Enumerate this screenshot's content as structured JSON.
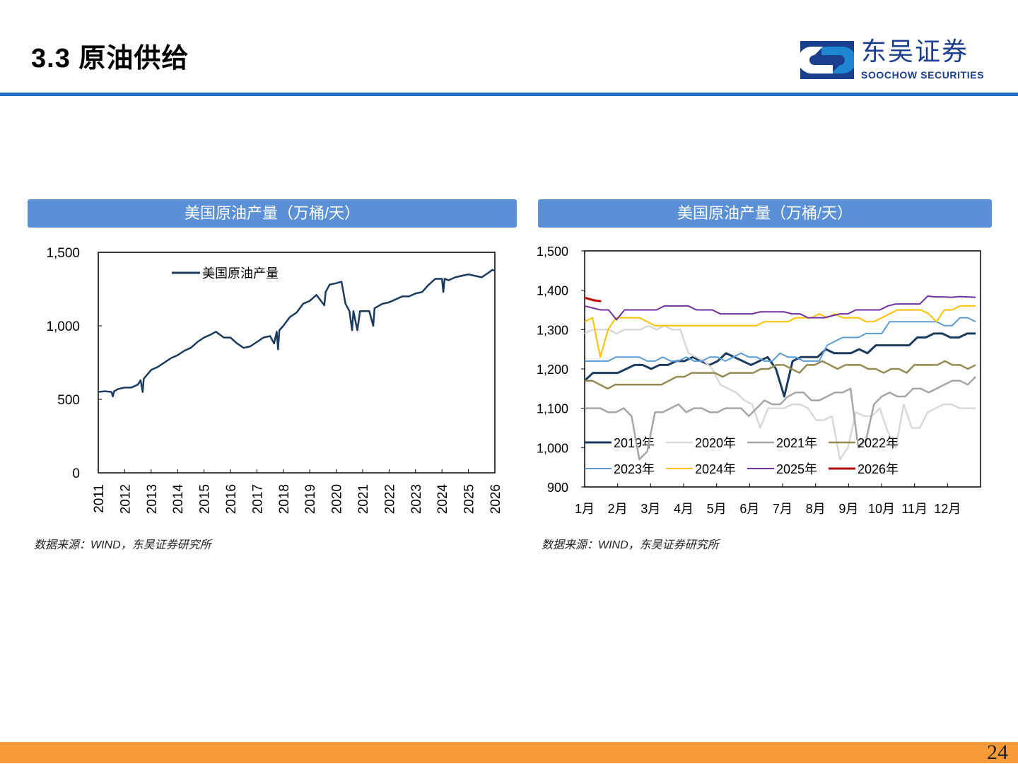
{
  "header": {
    "title": "3.3 原油供给",
    "logo_cn": "东吴证券",
    "logo_en": "SOOCHOW SECURITIES"
  },
  "panels": [
    {
      "title": "美国原油产量（万桶/天）",
      "source": "数据来源：WIND，东吴证券研究所"
    },
    {
      "title": "美国原油产量（万桶/天）",
      "source": "数据来源：WIND，东吴证券研究所"
    }
  ],
  "page_number": "24",
  "colors": {
    "accent": "#1f6fc5",
    "panel": "#5b90d6",
    "footer": "#f79a38"
  },
  "chart_data": [
    {
      "type": "line",
      "title": "美国原油产量（万桶/天）",
      "xlabel": "",
      "ylabel": "",
      "xlim": [
        2011,
        2026
      ],
      "ylim": [
        0,
        1500
      ],
      "x_ticks": [
        "2011",
        "2012",
        "2013",
        "2014",
        "2015",
        "2016",
        "2017",
        "2018",
        "2019",
        "2020",
        "2021",
        "2022",
        "2023",
        "2024",
        "2025",
        "2026"
      ],
      "y_ticks": [
        "0",
        "500",
        "1,000",
        "1,500"
      ],
      "y_tick_values": [
        0,
        500,
        1000,
        1500
      ],
      "legend": "top-left",
      "series": [
        {
          "name": "美国原油产量",
          "color": "#1b3a5e",
          "points": [
            [
              2011,
              550
            ],
            [
              2011.25,
              555
            ],
            [
              2011.5,
              550
            ],
            [
              2011.55,
              520
            ],
            [
              2011.6,
              555
            ],
            [
              2011.75,
              570
            ],
            [
              2012,
              580
            ],
            [
              2012.25,
              580
            ],
            [
              2012.5,
              600
            ],
            [
              2012.6,
              630
            ],
            [
              2012.68,
              550
            ],
            [
              2012.72,
              640
            ],
            [
              2013,
              700
            ],
            [
              2013.25,
              720
            ],
            [
              2013.5,
              750
            ],
            [
              2013.75,
              780
            ],
            [
              2014,
              800
            ],
            [
              2014.25,
              830
            ],
            [
              2014.5,
              850
            ],
            [
              2014.75,
              890
            ],
            [
              2015,
              920
            ],
            [
              2015.25,
              940
            ],
            [
              2015.45,
              960
            ],
            [
              2015.75,
              920
            ],
            [
              2016,
              920
            ],
            [
              2016.25,
              880
            ],
            [
              2016.5,
              850
            ],
            [
              2016.75,
              860
            ],
            [
              2017,
              890
            ],
            [
              2017.25,
              920
            ],
            [
              2017.5,
              930
            ],
            [
              2017.65,
              880
            ],
            [
              2017.75,
              960
            ],
            [
              2017.8,
              840
            ],
            [
              2017.85,
              970
            ],
            [
              2018,
              1000
            ],
            [
              2018.25,
              1060
            ],
            [
              2018.5,
              1090
            ],
            [
              2018.75,
              1150
            ],
            [
              2019,
              1170
            ],
            [
              2019.25,
              1210
            ],
            [
              2019.55,
              1140
            ],
            [
              2019.6,
              1230
            ],
            [
              2019.75,
              1280
            ],
            [
              2020,
              1290
            ],
            [
              2020.2,
              1300
            ],
            [
              2020.35,
              1150
            ],
            [
              2020.5,
              1100
            ],
            [
              2020.6,
              970
            ],
            [
              2020.65,
              1100
            ],
            [
              2020.8,
              970
            ],
            [
              2020.9,
              1100
            ],
            [
              2021,
              1100
            ],
            [
              2021.25,
              1100
            ],
            [
              2021.4,
              1000
            ],
            [
              2021.45,
              1120
            ],
            [
              2021.75,
              1150
            ],
            [
              2022,
              1160
            ],
            [
              2022.25,
              1180
            ],
            [
              2022.5,
              1200
            ],
            [
              2022.75,
              1200
            ],
            [
              2023,
              1220
            ],
            [
              2023.25,
              1230
            ],
            [
              2023.5,
              1280
            ],
            [
              2023.75,
              1320
            ],
            [
              2024,
              1320
            ],
            [
              2024.05,
              1230
            ],
            [
              2024.1,
              1320
            ],
            [
              2024.25,
              1310
            ],
            [
              2024.5,
              1330
            ],
            [
              2024.75,
              1340
            ],
            [
              2025,
              1350
            ],
            [
              2025.25,
              1340
            ],
            [
              2025.5,
              1330
            ],
            [
              2025.75,
              1360
            ],
            [
              2025.9,
              1380
            ],
            [
              2026,
              1375
            ]
          ]
        }
      ]
    },
    {
      "type": "line",
      "title": "美国原油产量（万桶/天）",
      "xlabel": "",
      "ylabel": "",
      "xlim": [
        0,
        12
      ],
      "ylim": [
        900,
        1500
      ],
      "x_ticks": [
        "1月",
        "2月",
        "3月",
        "4月",
        "5月",
        "6月",
        "7月",
        "8月",
        "9月",
        "10月",
        "11月",
        "12月"
      ],
      "y_ticks": [
        "900",
        "1,000",
        "1,100",
        "1,200",
        "1,300",
        "1,400",
        "1,500"
      ],
      "y_tick_values": [
        900,
        1000,
        1100,
        1200,
        1300,
        1400,
        1500
      ],
      "legend": "bottom-inside",
      "series": [
        {
          "name": "2019年",
          "color": "#1b3a5e",
          "width": 3,
          "values": [
            1170,
            1190,
            1190,
            1190,
            1190,
            1200,
            1210,
            1210,
            1200,
            1210,
            1210,
            1220,
            1220,
            1230,
            1220,
            1210,
            1220,
            1240,
            1230,
            1220,
            1210,
            1220,
            1230,
            1200,
            1130,
            1220,
            1230,
            1230,
            1230,
            1250,
            1240,
            1240,
            1240,
            1250,
            1240,
            1260,
            1260,
            1260,
            1260,
            1260,
            1280,
            1280,
            1290,
            1290,
            1280,
            1280,
            1290,
            1290
          ]
        },
        {
          "name": "2020年",
          "color": "#d9d9d9",
          "width": 2.5,
          "values": [
            1290,
            1300,
            1300,
            1300,
            1290,
            1300,
            1300,
            1300,
            1310,
            1300,
            1310,
            1300,
            1300,
            1240,
            1230,
            1220,
            1200,
            1160,
            1150,
            1140,
            1120,
            1110,
            1050,
            1100,
            1100,
            1100,
            1110,
            1110,
            1100,
            1070,
            1070,
            1080,
            970,
            1000,
            1090,
            1080,
            1080,
            1100,
            1040,
            1000,
            1110,
            1050,
            1050,
            1090,
            1100,
            1110,
            1110,
            1100,
            1100,
            1100
          ]
        },
        {
          "name": "2021年",
          "color": "#a6a6a6",
          "width": 2.5,
          "values": [
            1100,
            1100,
            1100,
            1090,
            1090,
            1100,
            1080,
            970,
            990,
            1090,
            1090,
            1100,
            1110,
            1090,
            1100,
            1100,
            1090,
            1090,
            1100,
            1100,
            1100,
            1080,
            1100,
            1120,
            1110,
            1110,
            1130,
            1140,
            1140,
            1120,
            1120,
            1130,
            1140,
            1140,
            1150,
            1000,
            1020,
            1110,
            1130,
            1140,
            1130,
            1130,
            1150,
            1150,
            1140,
            1150,
            1160,
            1170,
            1170,
            1160,
            1180
          ]
        },
        {
          "name": "2022年",
          "color": "#948a54",
          "width": 2.5,
          "values": [
            1170,
            1170,
            1160,
            1150,
            1160,
            1160,
            1160,
            1160,
            1160,
            1160,
            1160,
            1170,
            1180,
            1180,
            1190,
            1190,
            1190,
            1190,
            1180,
            1190,
            1190,
            1190,
            1190,
            1200,
            1200,
            1210,
            1210,
            1200,
            1190,
            1210,
            1210,
            1220,
            1210,
            1200,
            1210,
            1210,
            1210,
            1200,
            1200,
            1190,
            1200,
            1200,
            1190,
            1210,
            1210,
            1210,
            1210,
            1220,
            1210,
            1210,
            1200,
            1210
          ]
        },
        {
          "name": "2023年",
          "color": "#5b9bd5",
          "width": 2,
          "values": [
            1220,
            1220,
            1220,
            1220,
            1230,
            1230,
            1230,
            1230,
            1220,
            1220,
            1230,
            1220,
            1220,
            1230,
            1220,
            1220,
            1230,
            1230,
            1220,
            1230,
            1240,
            1230,
            1230,
            1220,
            1220,
            1240,
            1230,
            1230,
            1220,
            1220,
            1220,
            1260,
            1270,
            1280,
            1280,
            1280,
            1290,
            1290,
            1290,
            1320,
            1320,
            1320,
            1320,
            1320,
            1320,
            1320,
            1310,
            1310,
            1330,
            1330,
            1320
          ]
        },
        {
          "name": "2024年",
          "color": "#ffc000",
          "width": 2,
          "values": [
            1320,
            1330,
            1230,
            1300,
            1330,
            1330,
            1330,
            1330,
            1320,
            1310,
            1310,
            1310,
            1310,
            1310,
            1310,
            1310,
            1310,
            1310,
            1310,
            1310,
            1310,
            1310,
            1310,
            1320,
            1320,
            1320,
            1320,
            1330,
            1330,
            1330,
            1340,
            1330,
            1340,
            1330,
            1330,
            1330,
            1320,
            1320,
            1330,
            1340,
            1350,
            1350,
            1350,
            1350,
            1340,
            1320,
            1350,
            1350,
            1360,
            1360,
            1360
          ]
        },
        {
          "name": "2025年",
          "color": "#7030a0",
          "width": 2,
          "values": [
            1360,
            1355,
            1350,
            1350,
            1325,
            1350,
            1350,
            1350,
            1350,
            1350,
            1360,
            1360,
            1360,
            1360,
            1350,
            1350,
            1350,
            1340,
            1340,
            1340,
            1340,
            1340,
            1345,
            1345,
            1345,
            1345,
            1340,
            1340,
            1330,
            1330,
            1330,
            1335,
            1340,
            1340,
            1350,
            1350,
            1350,
            1350,
            1360,
            1365,
            1365,
            1365,
            1365,
            1385,
            1383,
            1383,
            1382,
            1384,
            1383,
            1382
          ]
        },
        {
          "name": "2026年",
          "color": "#c00000",
          "width": 3,
          "x": [
            0,
            0.25,
            0.5
          ],
          "values": [
            1381,
            1375,
            1372
          ]
        }
      ]
    }
  ]
}
